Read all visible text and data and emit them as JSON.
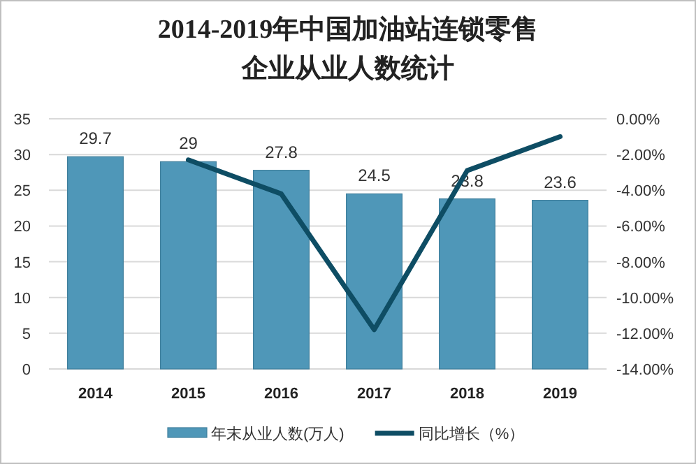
{
  "chart_data": {
    "type": "bar",
    "title": "2014-2019年中国加油站连锁零售企业从业人数统计",
    "categories": [
      "2014",
      "2015",
      "2016",
      "2017",
      "2018",
      "2019"
    ],
    "series": [
      {
        "name": "年末从业人数(万人)",
        "color": "#4f97b8",
        "values": [
          29.7,
          29,
          27.8,
          24.5,
          23.8,
          23.6
        ],
        "value_labels": [
          "29.7",
          "29",
          "27.8",
          "24.5",
          "23.8",
          "23.6"
        ]
      },
      {
        "name": "同比增长（%）",
        "type": "line",
        "axis": "y2",
        "color": "#0e4d64",
        "values": [
          null,
          -2.3,
          -4.2,
          -11.8,
          -2.9,
          -1.0
        ]
      }
    ],
    "ylim": [
      0,
      35
    ],
    "yticks": [
      0,
      5,
      10,
      15,
      20,
      25,
      30,
      35
    ],
    "y2lim": [
      -14,
      0
    ],
    "y2ticks": [
      {
        "value": 0,
        "label": "0.00%"
      },
      {
        "value": -2,
        "label": "-2.00%"
      },
      {
        "value": -4,
        "label": "-4.00%"
      },
      {
        "value": -6,
        "label": "-6.00%"
      },
      {
        "value": -8,
        "label": "-8.00%"
      },
      {
        "value": -10,
        "label": "-10.00%"
      },
      {
        "value": -12,
        "label": "-12.00%"
      },
      {
        "value": -14,
        "label": "-14.00%"
      }
    ],
    "grid": "y",
    "legend": "bottom",
    "marker": "none",
    "line_style": "solid"
  }
}
